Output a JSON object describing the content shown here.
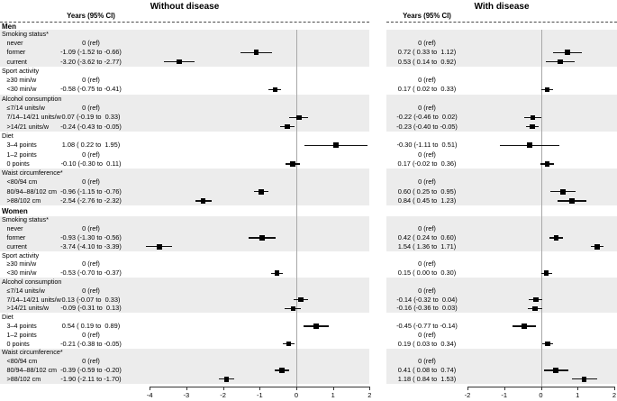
{
  "chart_data": {
    "type": "forest",
    "panels": [
      {
        "title": "Without disease",
        "col_header": "Years (95% CI)",
        "xlabel": "",
        "xlim": [
          -4,
          2
        ],
        "ticks": [
          -4,
          -3,
          -2,
          -1,
          0,
          1,
          2
        ],
        "reference_line": 0
      },
      {
        "title": "With disease",
        "col_header": "Years (95% CI)",
        "xlabel": "",
        "xlim": [
          -2,
          2
        ],
        "ticks": [
          -2,
          -1,
          0,
          1,
          2
        ],
        "reference_line": 0
      }
    ],
    "sections": [
      {
        "label": "Men",
        "groups": [
          {
            "label": "Smoking status*",
            "shaded": true,
            "items": [
              {
                "label": "never",
                "left": {
                  "text": "0 (ref)",
                  "ref": true
                },
                "right": {
                  "text": "0 (ref)",
                  "ref": true
                }
              },
              {
                "label": "former",
                "left": {
                  "text": "-1.09 (-1.52 to -0.66)",
                  "est": -1.09,
                  "lo": -1.52,
                  "hi": -0.66
                },
                "right": {
                  "text": "0.72 ( 0.33 to  1.12)",
                  "est": 0.72,
                  "lo": 0.33,
                  "hi": 1.12
                }
              },
              {
                "label": "current",
                "left": {
                  "text": "-3.20 (-3.62 to -2.77)",
                  "est": -3.2,
                  "lo": -3.62,
                  "hi": -2.77
                },
                "right": {
                  "text": "0.53 ( 0.14 to  0.92)",
                  "est": 0.53,
                  "lo": 0.14,
                  "hi": 0.92
                }
              }
            ]
          },
          {
            "label": "Sport activity",
            "shaded": false,
            "items": [
              {
                "label": "≥30 min/w",
                "left": {
                  "text": "0 (ref)",
                  "ref": true
                },
                "right": {
                  "text": "0 (ref)",
                  "ref": true
                }
              },
              {
                "label": "<30 min/w",
                "left": {
                  "text": "-0.58 (-0.75 to -0.41)",
                  "est": -0.58,
                  "lo": -0.75,
                  "hi": -0.41
                },
                "right": {
                  "text": "0.17 ( 0.02 to  0.33)",
                  "est": 0.17,
                  "lo": 0.02,
                  "hi": 0.33
                }
              }
            ]
          },
          {
            "label": "Alcohol consumption",
            "shaded": true,
            "items": [
              {
                "label": "≤7/14 units/w",
                "left": {
                  "text": "0 (ref)",
                  "ref": true
                },
                "right": {
                  "text": "0 (ref)",
                  "ref": true
                }
              },
              {
                "label": "7/14–14/21 units/w",
                "left": {
                  "text": "0.07 (-0.19 to  0.33)",
                  "est": 0.07,
                  "lo": -0.19,
                  "hi": 0.33
                },
                "right": {
                  "text": "-0.22 (-0.46 to  0.02)",
                  "est": -0.22,
                  "lo": -0.46,
                  "hi": 0.02
                }
              },
              {
                "label": ">14/21 units/w",
                "left": {
                  "text": "-0.24 (-0.43 to -0.05)",
                  "est": -0.24,
                  "lo": -0.43,
                  "hi": -0.05
                },
                "right": {
                  "text": "-0.23 (-0.40 to -0.05)",
                  "est": -0.23,
                  "lo": -0.4,
                  "hi": -0.05
                }
              }
            ]
          },
          {
            "label": "Diet",
            "shaded": false,
            "items": [
              {
                "label": "3–4 points",
                "left": {
                  "text": "1.08 ( 0.22 to  1.95)",
                  "est": 1.08,
                  "lo": 0.22,
                  "hi": 1.95
                },
                "right": {
                  "text": "-0.30 (-1.11 to  0.51)",
                  "est": -0.3,
                  "lo": -1.11,
                  "hi": 0.51
                }
              },
              {
                "label": "1–2 points",
                "left": {
                  "text": "0 (ref)",
                  "ref": true
                },
                "right": {
                  "text": "0 (ref)",
                  "ref": true
                }
              },
              {
                "label": "0 points",
                "left": {
                  "text": "-0.10 (-0.30 to  0.11)",
                  "est": -0.1,
                  "lo": -0.3,
                  "hi": 0.11
                },
                "right": {
                  "text": "0.17 (-0.02 to  0.36)",
                  "est": 0.17,
                  "lo": -0.02,
                  "hi": 0.36
                }
              }
            ]
          },
          {
            "label": "Waist circumference*",
            "shaded": true,
            "items": [
              {
                "label": "<80/94 cm",
                "left": {
                  "text": "0 (ref)",
                  "ref": true
                },
                "right": {
                  "text": "0 (ref)",
                  "ref": true
                }
              },
              {
                "label": "80/94–88/102 cm",
                "left": {
                  "text": "-0.96 (-1.15 to -0.76)",
                  "est": -0.96,
                  "lo": -1.15,
                  "hi": -0.76
                },
                "right": {
                  "text": "0.60 ( 0.25 to  0.95)",
                  "est": 0.6,
                  "lo": 0.25,
                  "hi": 0.95
                }
              },
              {
                "label": ">88/102 cm",
                "left": {
                  "text": "-2.54 (-2.76 to -2.32)",
                  "est": -2.54,
                  "lo": -2.76,
                  "hi": -2.32
                },
                "right": {
                  "text": "0.84 ( 0.45 to  1.23)",
                  "est": 0.84,
                  "lo": 0.45,
                  "hi": 1.23
                }
              }
            ]
          }
        ]
      },
      {
        "label": "Women",
        "groups": [
          {
            "label": "Smoking status*",
            "shaded": true,
            "items": [
              {
                "label": "never",
                "left": {
                  "text": "0 (ref)",
                  "ref": true
                },
                "right": {
                  "text": "0 (ref)",
                  "ref": true
                }
              },
              {
                "label": "former",
                "left": {
                  "text": "-0.93 (-1.30 to -0.56)",
                  "est": -0.93,
                  "lo": -1.3,
                  "hi": -0.56
                },
                "right": {
                  "text": "0.42 ( 0.24 to  0.60)",
                  "est": 0.42,
                  "lo": 0.24,
                  "hi": 0.6
                }
              },
              {
                "label": "current",
                "left": {
                  "text": "-3.74 (-4.10 to -3.39)",
                  "est": -3.74,
                  "lo": -4.1,
                  "hi": -3.39
                },
                "right": {
                  "text": "1.54 ( 1.36 to  1.71)",
                  "est": 1.54,
                  "lo": 1.36,
                  "hi": 1.71
                }
              }
            ]
          },
          {
            "label": "Sport activity",
            "shaded": false,
            "items": [
              {
                "label": "≥30 min/w",
                "left": {
                  "text": "0 (ref)",
                  "ref": true
                },
                "right": {
                  "text": "0 (ref)",
                  "ref": true
                }
              },
              {
                "label": "<30 min/w",
                "left": {
                  "text": "-0.53 (-0.70 to -0.37)",
                  "est": -0.53,
                  "lo": -0.7,
                  "hi": -0.37
                },
                "right": {
                  "text": "0.15 ( 0.00 to  0.30)",
                  "est": 0.15,
                  "lo": 0.0,
                  "hi": 0.3
                }
              }
            ]
          },
          {
            "label": "Alcohol consumption",
            "shaded": true,
            "items": [
              {
                "label": "≤7/14 units/w",
                "left": {
                  "text": "0 (ref)",
                  "ref": true
                },
                "right": {
                  "text": "0 (ref)",
                  "ref": true
                }
              },
              {
                "label": "7/14–14/21 units/w",
                "left": {
                  "text": "0.13 (-0.07 to  0.33)",
                  "est": 0.13,
                  "lo": -0.07,
                  "hi": 0.33
                },
                "right": {
                  "text": "-0.14 (-0.32 to  0.04)",
                  "est": -0.14,
                  "lo": -0.32,
                  "hi": 0.04
                }
              },
              {
                "label": ">14/21 units/w",
                "left": {
                  "text": "-0.09 (-0.31 to  0.13)",
                  "est": -0.09,
                  "lo": -0.31,
                  "hi": 0.13
                },
                "right": {
                  "text": "-0.16 (-0.36 to  0.03)",
                  "est": -0.16,
                  "lo": -0.36,
                  "hi": 0.03
                }
              }
            ]
          },
          {
            "label": "Diet",
            "shaded": false,
            "items": [
              {
                "label": "3–4 points",
                "left": {
                  "text": "0.54 ( 0.19 to  0.89)",
                  "est": 0.54,
                  "lo": 0.19,
                  "hi": 0.89
                },
                "right": {
                  "text": "-0.45 (-0.77 to -0.14)",
                  "est": -0.45,
                  "lo": -0.77,
                  "hi": -0.14
                }
              },
              {
                "label": "1–2 points",
                "left": {
                  "text": "0 (ref)",
                  "ref": true
                },
                "right": {
                  "text": "0 (ref)",
                  "ref": true
                }
              },
              {
                "label": "0 points",
                "left": {
                  "text": "-0.21 (-0.38 to -0.05)",
                  "est": -0.21,
                  "lo": -0.38,
                  "hi": -0.05
                },
                "right": {
                  "text": "0.19 ( 0.03 to  0.34)",
                  "est": 0.19,
                  "lo": 0.03,
                  "hi": 0.34
                }
              }
            ]
          },
          {
            "label": "Waist circumference*",
            "shaded": true,
            "items": [
              {
                "label": "<80/94 cm",
                "left": {
                  "text": "0 (ref)",
                  "ref": true
                },
                "right": {
                  "text": "0 (ref)",
                  "ref": true
                }
              },
              {
                "label": "80/94–88/102 cm",
                "left": {
                  "text": "-0.39 (-0.59 to -0.20)",
                  "est": -0.39,
                  "lo": -0.59,
                  "hi": -0.2
                },
                "right": {
                  "text": "0.41 ( 0.08 to  0.74)",
                  "est": 0.41,
                  "lo": 0.08,
                  "hi": 0.74
                }
              },
              {
                "label": ">88/102 cm",
                "left": {
                  "text": "-1.90 (-2.11 to -1.70)",
                  "est": -1.9,
                  "lo": -2.11,
                  "hi": -1.7
                },
                "right": {
                  "text": "1.18 ( 0.84 to  1.53)",
                  "est": 1.18,
                  "lo": 0.84,
                  "hi": 1.53
                }
              }
            ]
          }
        ]
      }
    ],
    "colors": {
      "band": "#ececec",
      "zero_line": "#a8a8a8",
      "axis": "#333333",
      "marker": "#000000",
      "ci": "#111111",
      "text": "#000000"
    },
    "layout_hints": {
      "grid": false,
      "legend": "none",
      "marker_shape": "square",
      "shaded_row_bands": true
    }
  }
}
